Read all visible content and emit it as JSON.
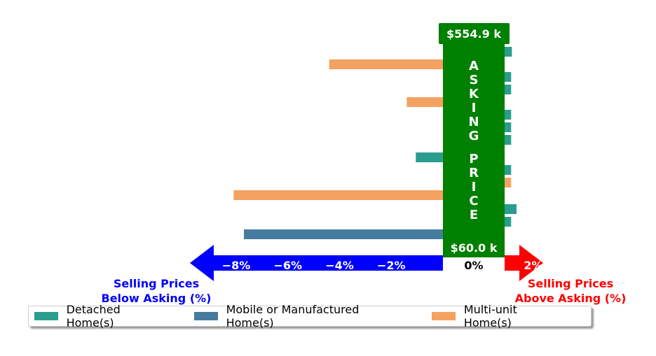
{
  "chart_data": {
    "type": "bar",
    "orientation": "horizontal",
    "title": "",
    "xlabel_left": "Selling Prices\nBelow Asking (%)",
    "xlabel_right": "Selling Prices\nAbove Asking (%)",
    "x_ticks": [
      "−8%",
      "−6%",
      "−4%",
      "−2%",
      "0%",
      "2%"
    ],
    "x_tick_values": [
      -8,
      -6,
      -4,
      -2,
      0,
      2
    ],
    "xlim": [
      -9.6,
      2.5
    ],
    "center_label": "ASKING PRICE",
    "price_max_label": "$554.9 k",
    "price_min_label": "$60.0 k",
    "series": [
      {
        "name": "Detached Home(s)",
        "color": "#2a9d8f",
        "values": [
          2.2,
          null,
          2.15,
          2.15,
          null,
          2.15,
          2.15,
          2.15,
          -1.05,
          2.15,
          null,
          null,
          2.5,
          2.15,
          null
        ]
      },
      {
        "name": "Mobile or Manufactured Home(s)",
        "color": "#457b9d",
        "values": [
          null,
          null,
          null,
          null,
          null,
          null,
          null,
          null,
          null,
          null,
          null,
          null,
          null,
          null,
          -7.7
        ]
      },
      {
        "name": "Multi-unit Home(s)",
        "color": "#f4a261",
        "values": [
          null,
          -4.4,
          null,
          null,
          -1.4,
          null,
          null,
          null,
          null,
          null,
          2.15,
          -8.1,
          null,
          null,
          null
        ]
      }
    ],
    "arrow_left_color": "#0000ff",
    "arrow_right_color": "#ff0000",
    "asking_band_color": "#008000",
    "legend_position": "bottom"
  }
}
